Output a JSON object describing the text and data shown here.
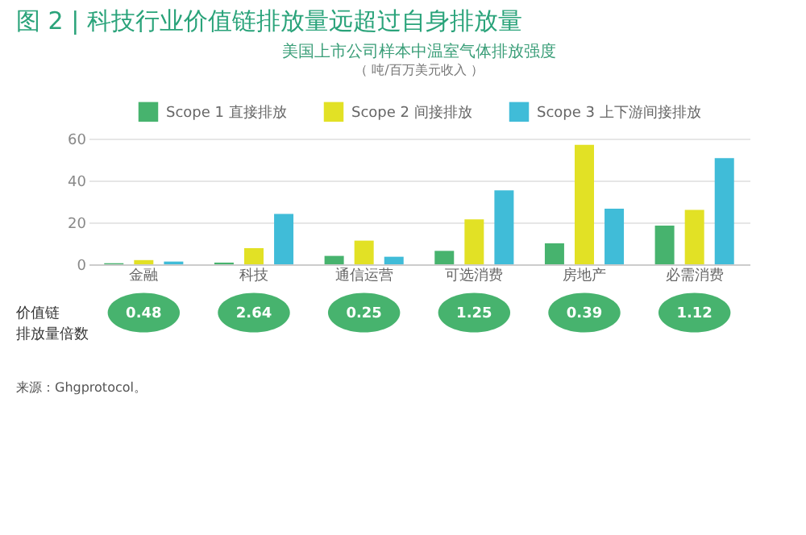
{
  "chart_data": {
    "type": "bar",
    "title": "图 2 | 科技行业价值链排放量远超过自身排放量",
    "subtitle": "美国上市公司样本中温室气体排放强度",
    "ylabel": "（ 吨/百万美元收入 ）",
    "categories": [
      "金融",
      "科技",
      "通信运营",
      "可选消费",
      "房地产",
      "必需消费"
    ],
    "series": [
      {
        "name": "Scope 1 直接排放",
        "color": "#47b36e",
        "values": [
          0.5,
          0.8,
          4,
          6.4,
          10,
          18.5
        ]
      },
      {
        "name": "Scope 2 间接排放",
        "color": "#e2e125",
        "values": [
          2,
          7.7,
          11.3,
          21.4,
          57,
          26
        ]
      },
      {
        "name": "Scope 3 上下游间接排放",
        "color": "#40bcd8",
        "values": [
          1.3,
          24,
          3.6,
          35.3,
          26.5,
          50.7
        ]
      }
    ],
    "ylim": [
      0,
      60
    ],
    "yticks": [
      0,
      20,
      40,
      60
    ],
    "grid": "y",
    "legend": "top",
    "annotations": [
      "价值链排放量倍数",
      "0.48",
      "2.64",
      "0.25",
      "1.25",
      "0.39",
      "1.12",
      "来源：Ghgprotocol。"
    ]
  }
}
